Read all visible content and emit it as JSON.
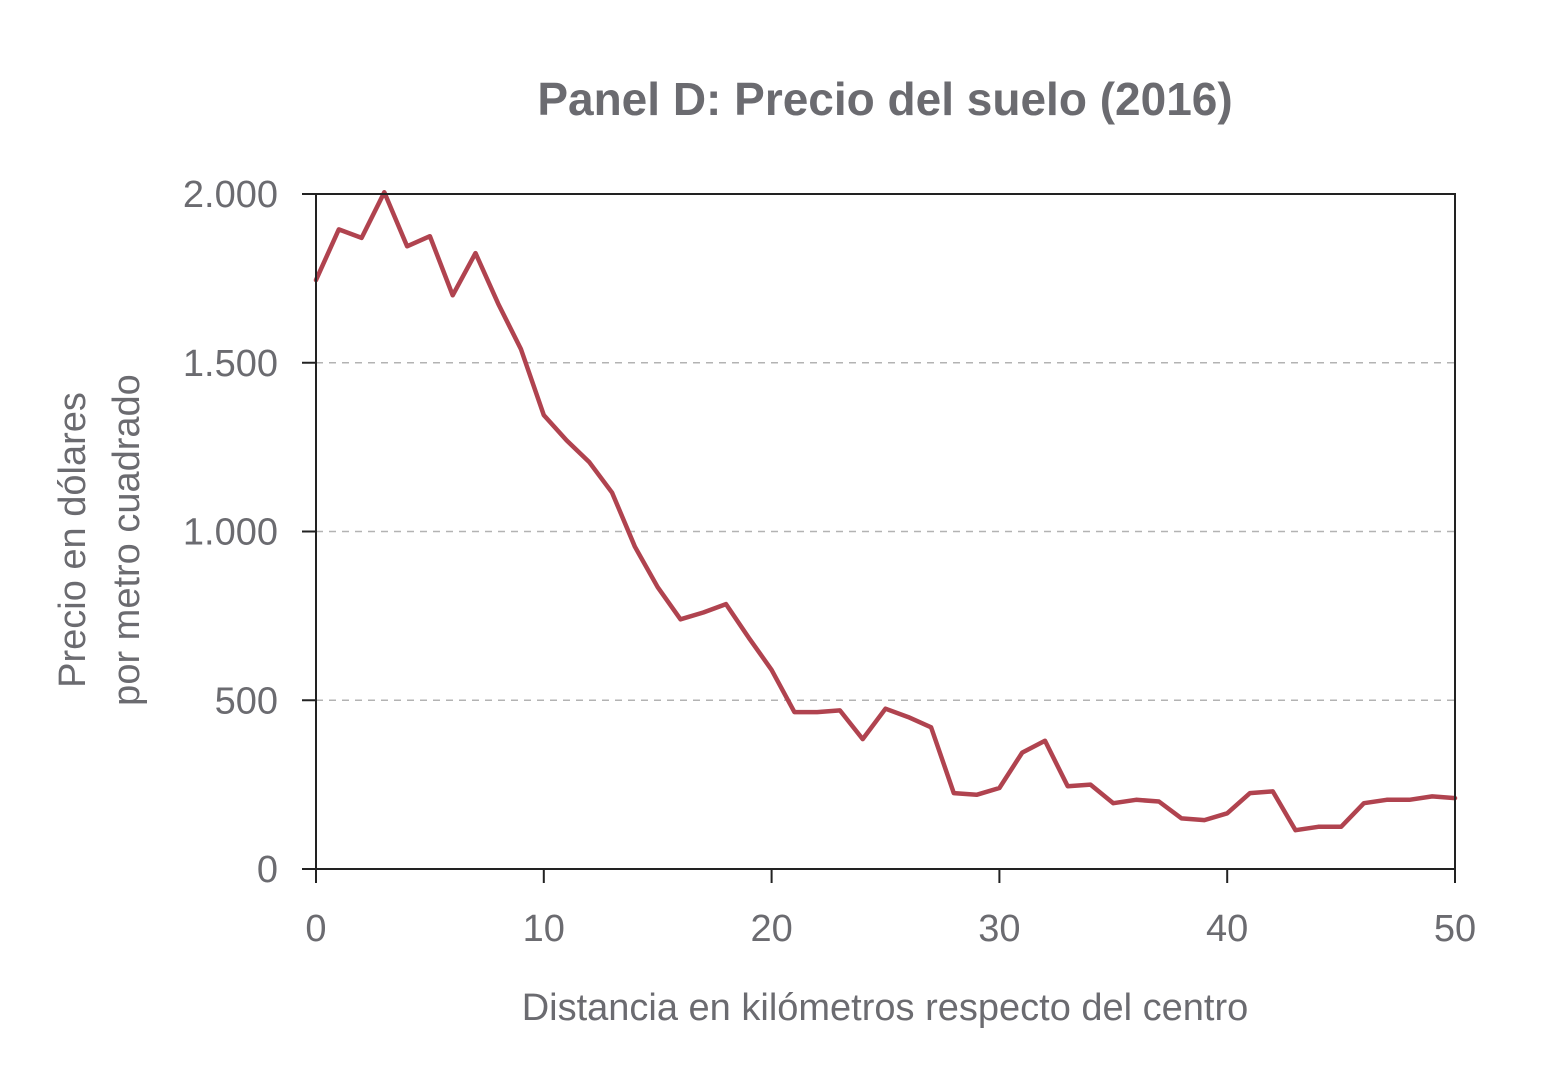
{
  "chart_data": {
    "type": "line",
    "title": "Panel D: Precio del suelo (2016)",
    "xlabel": "Distancia en kilómetros respecto del centro",
    "ylabel_lines": [
      "Precio en dólares",
      "por metro cuadrado"
    ],
    "xlim": [
      0,
      50
    ],
    "ylim": [
      0,
      2000
    ],
    "x_ticks": [
      0,
      10,
      20,
      30,
      40,
      50
    ],
    "x_tick_labels": [
      "0",
      "10",
      "20",
      "30",
      "40",
      "50"
    ],
    "y_ticks": [
      0,
      500,
      1000,
      1500,
      2000
    ],
    "y_tick_labels": [
      "0",
      "500",
      "1.000",
      "1.500",
      "2.000"
    ],
    "grid": "horizontal dashed",
    "line_color": "#b0434f",
    "series": [
      {
        "x": [
          0,
          1,
          2,
          3,
          4,
          5,
          6,
          7,
          8,
          9,
          10,
          11,
          12,
          13,
          14,
          15,
          16,
          17,
          18,
          19,
          20,
          21,
          22,
          23,
          24,
          25,
          26,
          27,
          28,
          29,
          30,
          31,
          32,
          33,
          34,
          35,
          36,
          37,
          38,
          39,
          40,
          41,
          42,
          43,
          44,
          45,
          46,
          47,
          48,
          49,
          50
        ],
        "values": [
          1745,
          1895,
          1870,
          2005,
          1845,
          1875,
          1700,
          1825,
          1675,
          1540,
          1345,
          1270,
          1205,
          1115,
          955,
          835,
          740,
          760,
          785,
          685,
          590,
          465,
          465,
          470,
          385,
          475,
          450,
          420,
          225,
          220,
          240,
          345,
          380,
          245,
          250,
          195,
          205,
          200,
          150,
          145,
          165,
          225,
          230,
          115,
          125,
          125,
          195,
          205,
          205,
          215,
          210
        ]
      }
    ]
  }
}
